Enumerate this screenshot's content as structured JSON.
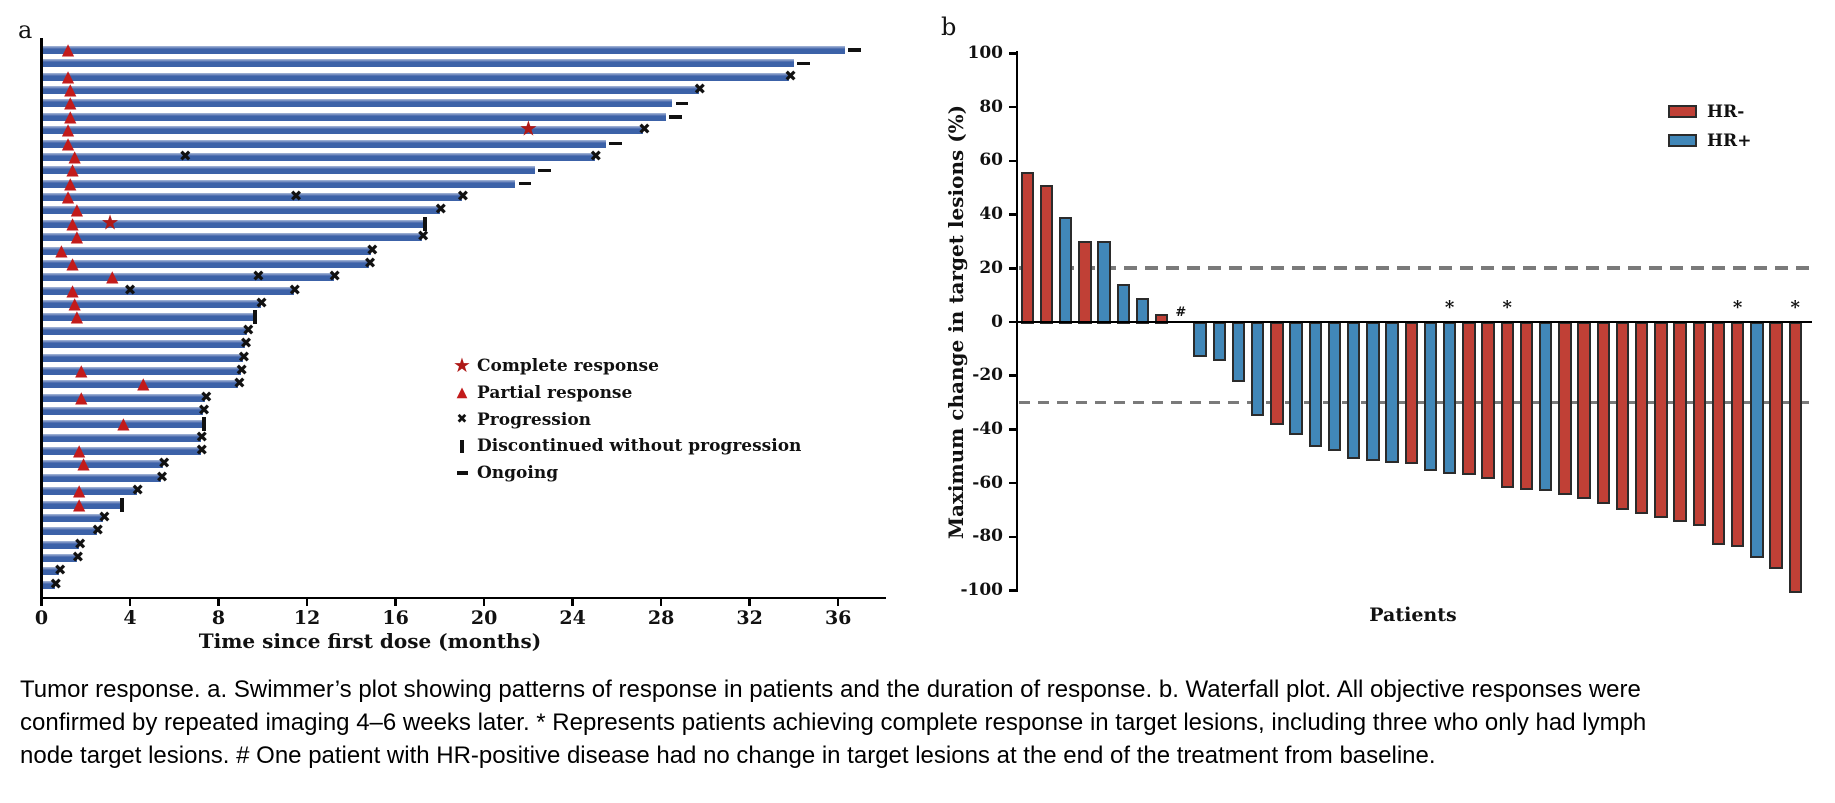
{
  "figure": {
    "panel_a_label": "a",
    "panel_b_label": "b",
    "caption_lines": [
      "Tumor response. a. Swimmer’s plot showing patterns of response in patients and the duration of response. b. Waterfall plot. All objective responses were",
      "confirmed by repeated imaging 4–6 weeks later. * Represents patients achieving complete response in target lesions, including three who only had lymph",
      "node target lesions. # One patient with HR-positive disease had no change in target lesions at the end of the treatment from baseline."
    ]
  },
  "colors": {
    "swimmer_bar_blue": "#3C62A8",
    "marker_red": "#C21B1B",
    "star_red": "#AE1917",
    "marker_black": "#111111",
    "hr_negative_red": "#C04036",
    "hr_positive_blue": "#4187B8",
    "bar_outline": "#2B2B2B",
    "dashed_gray": "#7A7A7A"
  },
  "chart_data": [
    {
      "type": "swimmer",
      "panel": "a",
      "xlabel": "Time since first dose (months)",
      "x_ticks": [
        0,
        4,
        8,
        12,
        16,
        20,
        24,
        28,
        32,
        36
      ],
      "xlim": [
        0,
        38.2
      ],
      "grid": false,
      "legend_position": "center-right",
      "legend": [
        {
          "marker": "star",
          "label": "Complete response"
        },
        {
          "marker": "triangle",
          "label": "Partial response"
        },
        {
          "marker": "x",
          "label": "Progression"
        },
        {
          "marker": "bar",
          "label": "Discontinued without progression"
        },
        {
          "marker": "dash",
          "label": "Ongoing"
        }
      ],
      "patients": [
        {
          "duration_months": 36.3,
          "end": "ongoing",
          "partial_response_at": 1.2
        },
        {
          "duration_months": 34.0,
          "end": "ongoing"
        },
        {
          "duration_months": 33.8,
          "end": "progression",
          "partial_response_at": 1.2
        },
        {
          "duration_months": 29.7,
          "end": "progression",
          "partial_response_at": 1.3
        },
        {
          "duration_months": 28.5,
          "end": "ongoing",
          "partial_response_at": 1.3
        },
        {
          "duration_months": 28.2,
          "end": "ongoing",
          "partial_response_at": 1.3
        },
        {
          "duration_months": 27.2,
          "end": "progression",
          "partial_response_at": 1.2,
          "complete_response_at": 22.0
        },
        {
          "duration_months": 25.5,
          "end": "ongoing",
          "partial_response_at": 1.2
        },
        {
          "duration_months": 25.0,
          "end": "progression",
          "partial_response_at": 1.5,
          "progression_at": [
            6.5
          ]
        },
        {
          "duration_months": 22.3,
          "end": "ongoing",
          "partial_response_at": 1.4
        },
        {
          "duration_months": 21.4,
          "end": "ongoing",
          "partial_response_at": 1.3
        },
        {
          "duration_months": 19.0,
          "end": "progression",
          "partial_response_at": 1.2,
          "progression_at": [
            11.5
          ]
        },
        {
          "duration_months": 18.0,
          "end": "progression",
          "partial_response_at": 1.6
        },
        {
          "duration_months": 17.3,
          "end": "discontinued",
          "partial_response_at": 1.4,
          "complete_response_at": 3.1
        },
        {
          "duration_months": 17.2,
          "end": "progression",
          "partial_response_at": 1.6
        },
        {
          "duration_months": 14.9,
          "end": "progression",
          "partial_response_at": 0.9
        },
        {
          "duration_months": 14.8,
          "end": "progression",
          "partial_response_at": 1.4
        },
        {
          "duration_months": 13.2,
          "end": "progression",
          "partial_response_at": 3.2,
          "progression_at": [
            9.8
          ]
        },
        {
          "duration_months": 11.4,
          "end": "progression",
          "partial_response_at": 1.4,
          "progression_at": [
            4.0
          ]
        },
        {
          "duration_months": 9.9,
          "end": "progression",
          "partial_response_at": 1.5
        },
        {
          "duration_months": 9.6,
          "end": "discontinued",
          "partial_response_at": 1.6
        },
        {
          "duration_months": 9.3,
          "end": "progression"
        },
        {
          "duration_months": 9.2,
          "end": "progression"
        },
        {
          "duration_months": 9.1,
          "end": "progression"
        },
        {
          "duration_months": 9.0,
          "end": "progression",
          "partial_response_at": 1.8
        },
        {
          "duration_months": 8.9,
          "end": "progression",
          "partial_response_at": 4.6
        },
        {
          "duration_months": 7.4,
          "end": "progression",
          "partial_response_at": 1.8
        },
        {
          "duration_months": 7.3,
          "end": "progression"
        },
        {
          "duration_months": 7.3,
          "end": "discontinued",
          "partial_response_at": 3.7
        },
        {
          "duration_months": 7.2,
          "end": "progression"
        },
        {
          "duration_months": 7.2,
          "end": "progression",
          "partial_response_at": 1.7
        },
        {
          "duration_months": 5.5,
          "end": "progression",
          "partial_response_at": 1.9
        },
        {
          "duration_months": 5.4,
          "end": "progression"
        },
        {
          "duration_months": 4.3,
          "end": "progression",
          "partial_response_at": 1.7
        },
        {
          "duration_months": 3.6,
          "end": "discontinued",
          "partial_response_at": 1.7
        },
        {
          "duration_months": 2.8,
          "end": "progression"
        },
        {
          "duration_months": 2.5,
          "end": "progression"
        },
        {
          "duration_months": 1.7,
          "end": "progression"
        },
        {
          "duration_months": 1.6,
          "end": "progression"
        },
        {
          "duration_months": 0.8,
          "end": "progression"
        },
        {
          "duration_months": 0.6,
          "end": "progression"
        }
      ]
    },
    {
      "type": "waterfall-bar",
      "panel": "b",
      "ylabel": "Maximum change in target lesions (%)",
      "xlabel": "Patients",
      "ylim": [
        -100,
        100
      ],
      "y_ticks": [
        100,
        80,
        60,
        40,
        20,
        0,
        -20,
        -40,
        -60,
        -80,
        -100
      ],
      "reference_lines_pct": [
        20,
        -30
      ],
      "grid": false,
      "legend_position": "top-right",
      "legend": [
        {
          "label": "HR-",
          "group": "HR-"
        },
        {
          "label": "HR+",
          "group": "HR+"
        }
      ],
      "patients": [
        {
          "value": 56,
          "group": "HR-"
        },
        {
          "value": 51,
          "group": "HR-"
        },
        {
          "value": 39,
          "group": "HR+"
        },
        {
          "value": 30,
          "group": "HR-"
        },
        {
          "value": 30,
          "group": "HR+"
        },
        {
          "value": 14,
          "group": "HR+"
        },
        {
          "value": 9,
          "group": "HR+"
        },
        {
          "value": 3,
          "group": "HR-"
        },
        {
          "value": 0,
          "group": "HR+",
          "mark": "#"
        },
        {
          "value": -12,
          "group": "HR+"
        },
        {
          "value": -13.5,
          "group": "HR+"
        },
        {
          "value": -21.5,
          "group": "HR+"
        },
        {
          "value": -34,
          "group": "HR+"
        },
        {
          "value": -37.5,
          "group": "HR-"
        },
        {
          "value": -41,
          "group": "HR+"
        },
        {
          "value": -45.5,
          "group": "HR+"
        },
        {
          "value": -47,
          "group": "HR+"
        },
        {
          "value": -50,
          "group": "HR+"
        },
        {
          "value": -51,
          "group": "HR+"
        },
        {
          "value": -51.5,
          "group": "HR+"
        },
        {
          "value": -52,
          "group": "HR-"
        },
        {
          "value": -54.5,
          "group": "HR+"
        },
        {
          "value": -55.5,
          "group": "HR+",
          "mark": "*"
        },
        {
          "value": -56,
          "group": "HR-"
        },
        {
          "value": -57.5,
          "group": "HR-"
        },
        {
          "value": -61,
          "group": "HR-",
          "mark": "*"
        },
        {
          "value": -61.5,
          "group": "HR-"
        },
        {
          "value": -62,
          "group": "HR+"
        },
        {
          "value": -63.5,
          "group": "HR-"
        },
        {
          "value": -65,
          "group": "HR-"
        },
        {
          "value": -67,
          "group": "HR-"
        },
        {
          "value": -69,
          "group": "HR-"
        },
        {
          "value": -70.5,
          "group": "HR-"
        },
        {
          "value": -72,
          "group": "HR-"
        },
        {
          "value": -73.5,
          "group": "HR-"
        },
        {
          "value": -75,
          "group": "HR-"
        },
        {
          "value": -82,
          "group": "HR-"
        },
        {
          "value": -83,
          "group": "HR-",
          "mark": "*"
        },
        {
          "value": -87,
          "group": "HR+"
        },
        {
          "value": -91,
          "group": "HR-"
        },
        {
          "value": -100,
          "group": "HR-",
          "mark": "*"
        }
      ]
    }
  ]
}
